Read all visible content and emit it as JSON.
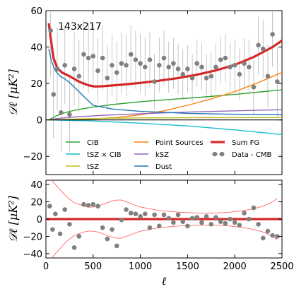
{
  "chart_data": [
    {
      "type": "line",
      "panel": "top",
      "annotation": "143x217",
      "xlim": [
        0,
        2500
      ],
      "ylim": [
        -30,
        60
      ],
      "xticks": [
        0,
        500,
        1000,
        1500,
        2000,
        2500
      ],
      "yticks": [
        -20,
        0,
        20,
        40,
        60
      ],
      "ylabel": "𝒟ℓ [μK²]",
      "legend": {
        "placement": "lower-center",
        "entries": [
          {
            "label": "CIB",
            "color": "#2ca02c",
            "kind": "line"
          },
          {
            "label": "Point Sources",
            "color": "#ff7f0e",
            "kind": "line"
          },
          {
            "label": "Sum FG",
            "color": "#d62728",
            "kind": "thick-line"
          },
          {
            "label": "tSZ × CIB",
            "color": "#17becf",
            "kind": "line"
          },
          {
            "label": "kSZ",
            "color": "#9467bd",
            "kind": "line"
          },
          {
            "label": "Data - CMB",
            "color": "#808080",
            "kind": "errorbar"
          },
          {
            "label": "tSZ",
            "color": "#bcbd22",
            "kind": "line"
          },
          {
            "label": "Dust",
            "color": "#1f77b4",
            "kind": "line"
          }
        ]
      },
      "series": [
        {
          "name": "CIB",
          "color": "#2ca02c",
          "x": [
            30,
            100,
            200,
            300,
            400,
            500,
            700,
            1000,
            1300,
            1600,
            2000,
            2500
          ],
          "y": [
            0,
            2,
            3.9,
            5.3,
            6.2,
            7,
            8.4,
            10,
            11.2,
            12.3,
            14,
            16.5
          ]
        },
        {
          "name": "Point Sources",
          "color": "#ff7f0e",
          "x": [
            30,
            250,
            500,
            750,
            1000,
            1250,
            1500,
            1750,
            2000,
            2250,
            2500
          ],
          "y": [
            0,
            0.15,
            0.55,
            1.3,
            2.8,
            5,
            8,
            11.5,
            15.5,
            20.5,
            26
          ]
        },
        {
          "name": "Sum FG",
          "color": "#d62728",
          "x": [
            30,
            50,
            80,
            120,
            170,
            250,
            350,
            450,
            520,
            600,
            800,
            1000,
            1200,
            1400,
            1600,
            1800,
            2000,
            2200,
            2400,
            2500
          ],
          "y": [
            53,
            45,
            34,
            28.5,
            26,
            24,
            21,
            19,
            18.3,
            18.5,
            19.3,
            20.3,
            21.5,
            23,
            24.8,
            27.2,
            30.2,
            34.5,
            40,
            43.5
          ]
        },
        {
          "name": "tSZ × CIB",
          "color": "#17becf",
          "x": [
            30,
            500,
            1000,
            1500,
            2000,
            2500
          ],
          "y": [
            0,
            -0.6,
            -1.8,
            -3.3,
            -5.5,
            -8
          ]
        },
        {
          "name": "kSZ",
          "color": "#9467bd",
          "x": [
            30,
            100,
            300,
            600,
            1000,
            1500,
            2000,
            2500
          ],
          "y": [
            0,
            0.7,
            1.6,
            2.5,
            3.4,
            4.3,
            5,
            5.6
          ]
        },
        {
          "name": "tSZ",
          "color": "#bcbd22",
          "x": [
            30,
            300,
            700,
            1000,
            1500,
            2000,
            2500
          ],
          "y": [
            0,
            0.5,
            0.9,
            1.1,
            1.2,
            1.25,
            1.3
          ]
        },
        {
          "name": "Dust",
          "color": "#1f77b4",
          "x": [
            30,
            60,
            100,
            150,
            200,
            250,
            300,
            350,
            400,
            450,
            500,
            700,
            1000,
            1500,
            2000,
            2500
          ],
          "y": [
            39,
            32,
            27,
            24,
            22.5,
            20.5,
            18,
            15.5,
            13,
            10.5,
            8,
            6,
            4.7,
            3.6,
            3.1,
            2.8
          ]
        },
        {
          "name": "Data - CMB",
          "color": "#808080",
          "kind": "errorbar",
          "x": [
            50,
            80,
            120,
            160,
            200,
            250,
            300,
            350,
            400,
            450,
            500,
            550,
            600,
            650,
            700,
            750,
            800,
            850,
            900,
            950,
            1000,
            1050,
            1100,
            1150,
            1200,
            1250,
            1300,
            1350,
            1400,
            1450,
            1500,
            1550,
            1600,
            1650,
            1700,
            1750,
            1800,
            1850,
            1900,
            1950,
            2000,
            2050,
            2100,
            2150,
            2200,
            2250,
            2300,
            2350,
            2400,
            2450
          ],
          "y": [
            49,
            14,
            28,
            4,
            30,
            3,
            28,
            24,
            36,
            34,
            35,
            27,
            34,
            23,
            30,
            26,
            31,
            30,
            36,
            33,
            31,
            29,
            33,
            21,
            30,
            34,
            29,
            31,
            28,
            25,
            28,
            23,
            31,
            29,
            23,
            24,
            29,
            33,
            34,
            29,
            30,
            25,
            31,
            29,
            18,
            41,
            39,
            24,
            47,
            21
          ],
          "err": [
            25,
            24,
            23,
            22,
            21,
            21,
            20,
            20,
            19,
            19,
            18,
            18,
            18,
            18,
            17,
            17,
            17,
            17,
            16,
            16,
            16,
            16,
            15,
            15,
            15,
            15,
            14,
            14,
            14,
            14,
            13,
            13,
            13,
            13,
            13,
            13,
            13,
            13,
            13,
            13,
            14,
            14,
            14,
            15,
            15,
            16,
            16,
            17,
            18,
            19
          ]
        }
      ]
    },
    {
      "type": "scatter",
      "panel": "bottom",
      "xlim": [
        0,
        2500
      ],
      "ylim": [
        -45,
        45
      ],
      "xticks": [
        0,
        500,
        1000,
        1500,
        2000,
        2500
      ],
      "yticks": [
        -40,
        -20,
        0,
        20,
        40
      ],
      "xlabel": "ℓ",
      "ylabel": "𝒟ℓ [μK²]",
      "zero_line_color": "#d62728",
      "envelope_color": "#ff6666",
      "envelope": {
        "x": [
          60,
          100,
          150,
          200,
          250,
          300,
          350,
          400,
          450,
          500,
          550,
          600,
          650,
          700,
          750,
          800,
          900,
          1000,
          1200,
          1400,
          1600,
          1800,
          1950,
          2100,
          2200,
          2300,
          2400,
          2450
        ],
        "upper": [
          45,
          40,
          34,
          28,
          23,
          19,
          17,
          15,
          14,
          14,
          15,
          17,
          19,
          21,
          22,
          22,
          18,
          14,
          10,
          8,
          7,
          7,
          8,
          10,
          12,
          15,
          20,
          24
        ],
        "lower": [
          -45,
          -40,
          -34,
          -28,
          -23,
          -19,
          -17,
          -15,
          -14,
          -14,
          -15,
          -17,
          -19,
          -21,
          -22,
          -22,
          -18,
          -14,
          -10,
          -8,
          -7,
          -7,
          -8,
          -10,
          -12,
          -15,
          -20,
          -24
        ]
      },
      "points": {
        "x": [
          40,
          70,
          100,
          150,
          200,
          250,
          300,
          350,
          400,
          450,
          500,
          550,
          600,
          650,
          700,
          750,
          800,
          850,
          900,
          950,
          1000,
          1050,
          1100,
          1150,
          1200,
          1250,
          1300,
          1350,
          1400,
          1450,
          1500,
          1550,
          1600,
          1650,
          1700,
          1750,
          1800,
          1850,
          1900,
          1950,
          2000,
          2050,
          2100,
          2150,
          2200,
          2250,
          2300,
          2350,
          2400,
          2450
        ],
        "y": [
          15,
          -12,
          6,
          -17,
          11,
          -6,
          -33,
          -20,
          17,
          16,
          17,
          15,
          -10,
          -23,
          -12,
          -31,
          -1,
          11,
          7,
          6,
          3,
          6,
          -10,
          5,
          -8,
          5,
          1,
          -4,
          5,
          -3,
          -8,
          1,
          2,
          -4,
          3,
          -6,
          2,
          -3,
          -5,
          0,
          -4,
          -7,
          7,
          0,
          13,
          -6,
          -22,
          -14,
          -19,
          -20
        ]
      }
    }
  ]
}
